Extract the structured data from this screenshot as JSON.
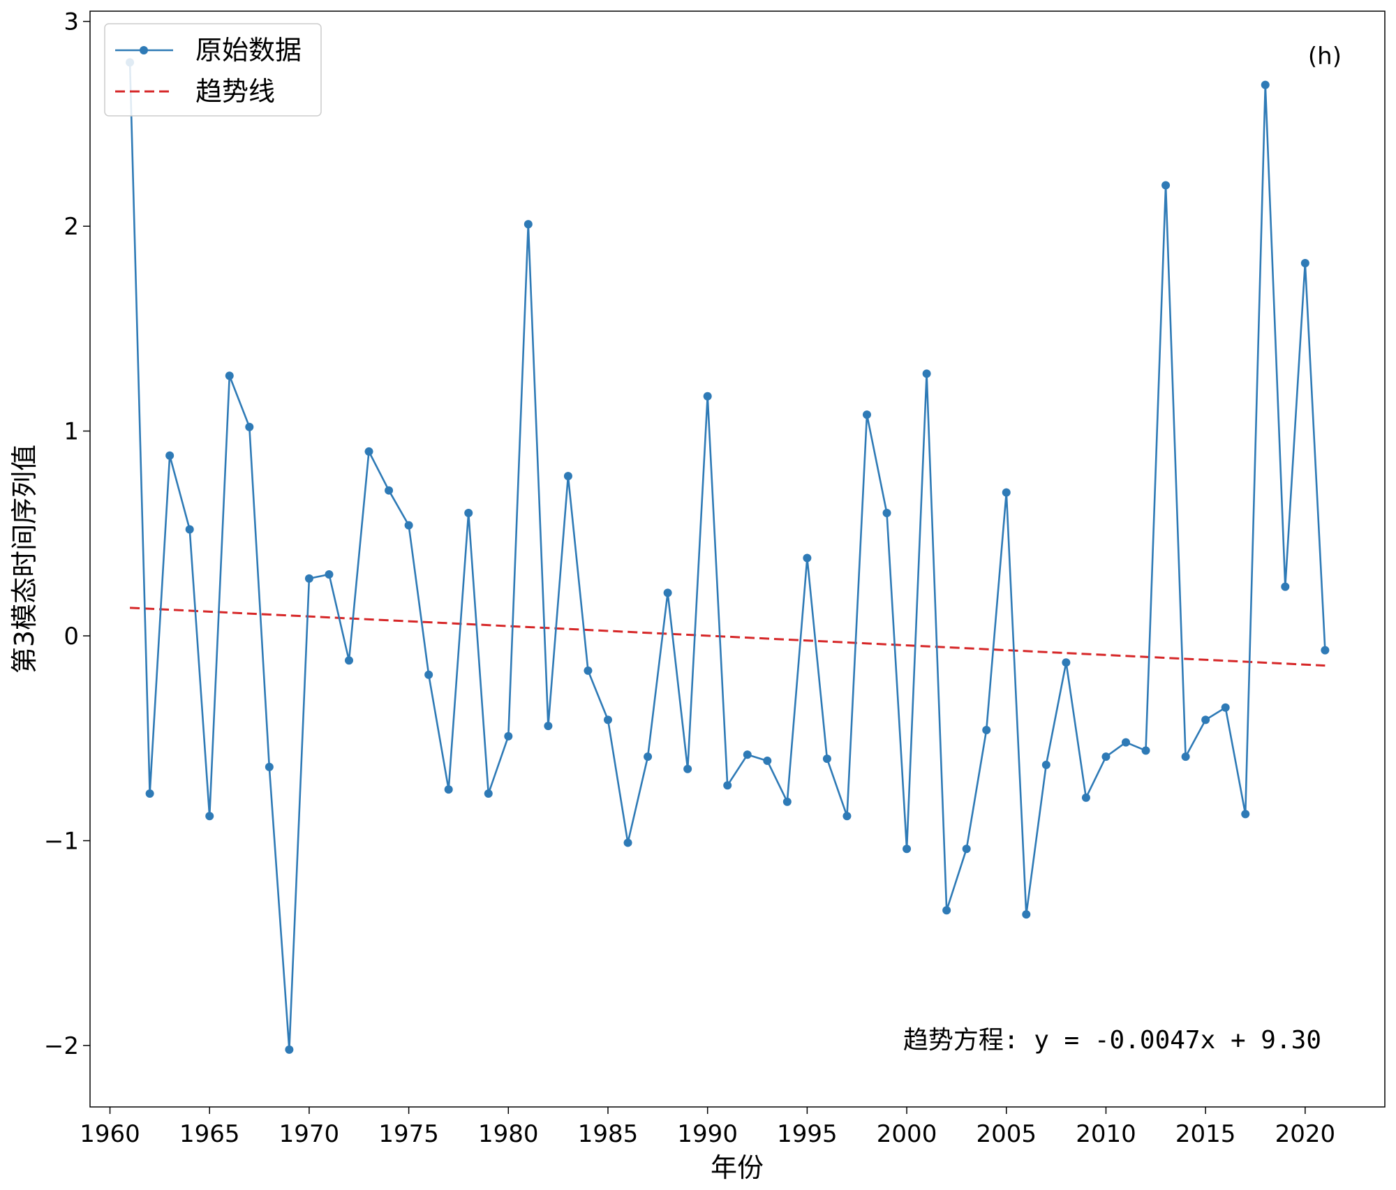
{
  "chart_data": {
    "type": "line",
    "title": "",
    "xlabel": "年份",
    "ylabel": "第3模态时间序列值",
    "panel_label": "(h)",
    "annotation": "趋势方程: y = -0.0047x + 9.30",
    "xlim": [
      1959,
      2024
    ],
    "ylim": [
      -2.3,
      3.05
    ],
    "x_ticks": [
      1960,
      1965,
      1970,
      1975,
      1980,
      1985,
      1990,
      1995,
      2000,
      2005,
      2010,
      2015,
      2020
    ],
    "x_tick_labels": [
      "1960",
      "1965",
      "1970",
      "1975",
      "1980",
      "1985",
      "1990",
      "1995",
      "2000",
      "2005",
      "2010",
      "2015",
      "2020"
    ],
    "y_ticks": [
      -2,
      -1,
      0,
      1,
      2,
      3
    ],
    "y_tick_labels": [
      "−2",
      "−1",
      "0",
      "1",
      "2",
      "3"
    ],
    "grid": false,
    "legend": {
      "position": "top-left",
      "entries": [
        "原始数据",
        "趋势线"
      ]
    },
    "series": [
      {
        "name": "原始数据",
        "color": "#2e7ab6",
        "style": "solid-with-markers",
        "x": [
          1961,
          1962,
          1963,
          1964,
          1965,
          1966,
          1967,
          1968,
          1969,
          1970,
          1971,
          1972,
          1973,
          1974,
          1975,
          1976,
          1977,
          1978,
          1979,
          1980,
          1981,
          1982,
          1983,
          1984,
          1985,
          1986,
          1987,
          1988,
          1989,
          1990,
          1991,
          1992,
          1993,
          1994,
          1995,
          1996,
          1997,
          1998,
          1999,
          2000,
          2001,
          2002,
          2003,
          2004,
          2005,
          2006,
          2007,
          2008,
          2009,
          2010,
          2011,
          2012,
          2013,
          2014,
          2015,
          2016,
          2017,
          2018,
          2019,
          2020,
          2021
        ],
        "y": [
          2.8,
          -0.77,
          0.88,
          0.52,
          -0.88,
          1.27,
          1.02,
          -0.64,
          -2.02,
          0.28,
          0.3,
          -0.12,
          0.9,
          0.71,
          0.54,
          -0.19,
          -0.75,
          0.6,
          -0.77,
          -0.49,
          2.01,
          -0.44,
          0.78,
          -0.17,
          -0.41,
          -1.01,
          -0.59,
          0.21,
          -0.65,
          1.17,
          -0.73,
          -0.58,
          -0.61,
          -0.81,
          0.38,
          -0.6,
          -0.88,
          1.08,
          0.6,
          -1.04,
          1.28,
          -1.34,
          -1.04,
          -0.46,
          0.7,
          -1.36,
          -0.63,
          -0.13,
          -0.79,
          -0.59,
          -0.52,
          -0.56,
          2.2,
          -0.59,
          -0.41,
          -0.35,
          -0.87,
          2.69,
          0.24,
          1.82,
          -0.07
        ]
      },
      {
        "name": "趋势线",
        "color": "#d62728",
        "style": "dashed",
        "x": [
          1961,
          2021
        ],
        "y": [
          0.137,
          -0.145
        ]
      }
    ]
  }
}
